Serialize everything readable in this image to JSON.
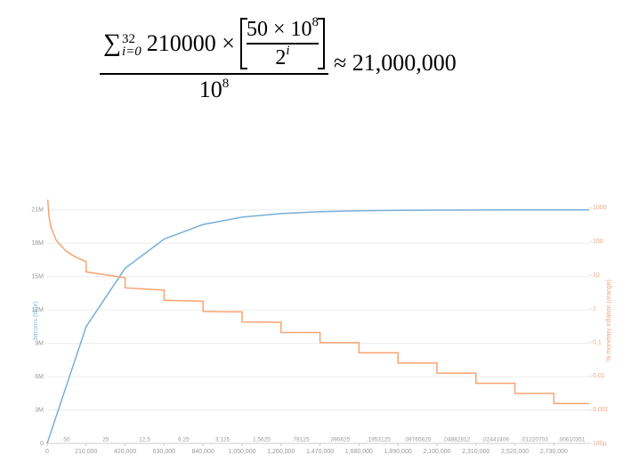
{
  "formula": {
    "sum_symbol": "∑",
    "sum_upper": "32",
    "sum_lower": "i=0",
    "coefficient": "210000 ×",
    "inner_numerator": "50 × 10",
    "inner_numerator_exp": "8",
    "inner_denominator": "2",
    "inner_denominator_exp": "i",
    "denominator": "10",
    "denominator_exp": "8",
    "result": "≈ 21,000,000"
  },
  "chart_data": {
    "type": "line",
    "y_label": "bitcoins (blue)",
    "y2_label": "% monetary inflation (orange)",
    "xlim": [
      0,
      2920000
    ],
    "xticks": [
      0,
      {
        "value": 210000,
        "label": "210,000"
      },
      {
        "value": 420000,
        "label": "420,000"
      },
      {
        "value": 630000,
        "label": "630,000"
      },
      {
        "value": 840000,
        "label": "840,000"
      },
      {
        "value": 1050000,
        "label": "1,050,000"
      },
      {
        "value": 1260000,
        "label": "1,260,000"
      },
      {
        "value": 1470000,
        "label": "1,470,000"
      },
      {
        "value": 1680000,
        "label": "1,680,000"
      },
      {
        "value": 1890000,
        "label": "1,890,000"
      },
      {
        "value": 2100000,
        "label": "2,100,000"
      },
      {
        "value": 2310000,
        "label": "2,310,000"
      },
      {
        "value": 2520000,
        "label": "2,520,000"
      },
      {
        "value": 2730000,
        "label": "2,730,000"
      }
    ],
    "ylim": [
      0,
      22100000
    ],
    "yticks": [
      0,
      {
        "value": 3000000,
        "label": "3M"
      },
      {
        "value": 6000000,
        "label": "6M"
      },
      {
        "value": 9000000,
        "label": "9M"
      },
      {
        "value": 12000000,
        "label": "12M"
      },
      {
        "value": 15000000,
        "label": "15M"
      },
      {
        "value": 18000000,
        "label": "18M"
      },
      {
        "value": 21000000,
        "label": "21M"
      }
    ],
    "y2lim": [
      0.0001,
      2000
    ],
    "y2scale": "log",
    "y2ticks": [
      1000,
      100,
      10,
      1,
      0.1,
      0.01,
      0.001,
      {
        "value": 0.0001,
        "label": "100µ"
      }
    ],
    "grid": true,
    "block_rewards": [
      "50",
      "25",
      "12.5",
      "6.25",
      "3.125",
      "1.5625",
      ".78125",
      ".390625",
      ".1953125",
      ".09765625",
      ".04882812",
      ".02441406",
      ".01220703",
      ".00610351"
    ],
    "series": [
      {
        "name": "bitcoins",
        "color": "#7aaed8",
        "x": [
          0,
          210000,
          420000,
          630000,
          840000,
          1050000,
          1260000,
          1470000,
          1680000,
          1890000,
          2100000,
          2310000,
          2520000,
          2730000,
          2920000
        ],
        "values": [
          0,
          10500000,
          15750000,
          18375000,
          19687500,
          20343750,
          20671875,
          20835938,
          20917969,
          20958984,
          20979492,
          20989746,
          20994873,
          20997437,
          20998460
        ]
      },
      {
        "name": "% monetary inflation",
        "color": "#f9a472",
        "axis": "y2",
        "x": [
          3000,
          10000,
          20000,
          50000,
          100000,
          150000,
          210000,
          210000,
          420000,
          420000,
          630000,
          630000,
          840000,
          840000,
          1050000,
          1050000,
          1260000,
          1260000,
          1470000,
          1470000,
          1680000,
          1680000,
          1890000,
          1890000,
          2100000,
          2100000,
          2310000,
          2310000,
          2520000,
          2520000,
          2730000,
          2730000,
          2920000
        ],
        "values": [
          1752,
          525.6,
          262.8,
          105.1,
          52.56,
          35.04,
          25.03,
          12.51,
          8.34,
          4.17,
          3.58,
          1.788,
          1.669,
          0.8344,
          0.8075,
          0.4037,
          0.3973,
          0.1986,
          0.1971,
          0.09854,
          0.09815,
          0.04908,
          0.04898,
          0.02449,
          0.02447,
          0.012233,
          0.012227,
          0.006114,
          0.006112,
          0.003056,
          0.003056,
          0.001528,
          0.001528
        ]
      }
    ]
  }
}
